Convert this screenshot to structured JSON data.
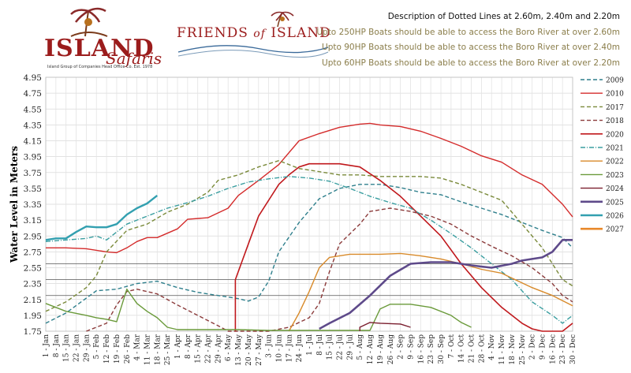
{
  "logos": {
    "island_safaris": {
      "name": "ISLAND",
      "sub": "Safaris",
      "tag": "Island Group of Companies Head Office Co. Est. 1978"
    },
    "friends_of_island": {
      "part1": "FRIENDS",
      "part2": "of",
      "part3": "ISLAND"
    }
  },
  "notes": {
    "heading": "Description of Dotted Lines at 2.60m, 2.40m and 2.20m",
    "lines": [
      "Upto 250HP Boats should be able to access the Boro River at over 2.60m",
      "Upto 90HP Boats should be able to access the Boro River at over 2.40m",
      "Upto 60HP Boats should be able to access the Boro River at over 2.20m"
    ]
  },
  "colors": {
    "note_text": "#8a7d4a",
    "heading_text": "#111111"
  },
  "chart_data": {
    "type": "line",
    "title": "",
    "xlabel": "",
    "ylabel": "Water Level in Meters",
    "ylim": [
      1.75,
      4.95
    ],
    "yticks": [
      "4.95",
      "4.75",
      "4.55",
      "4.35",
      "4.15",
      "3.95",
      "3.75",
      "3.55",
      "3.35",
      "3.15",
      "2.95",
      "2.75",
      "2.55",
      "2.35",
      "2.15",
      "1.95",
      "1.75"
    ],
    "threshold_lines": [
      2.6,
      2.4,
      2.2
    ],
    "x_unit": "day of year",
    "categories": [
      "1 - Jan",
      "8 - Jan",
      "15 - Jan",
      "22 - Jan",
      "29 - Jan",
      "5 - Feb",
      "12 - Feb",
      "19 - Feb",
      "26 - Feb",
      "4 - Mar",
      "11 - Mar",
      "18 - Mar",
      "25 - Mar",
      "1 - Apr",
      "8 - Apr",
      "15 - Apr",
      "22 - Apr",
      "29 - Apr",
      "6 - May",
      "13 - May",
      "20 - May",
      "27 - May",
      "3 - Jun",
      "10 - Jun",
      "17 - Jun",
      "24 - Jun",
      "1 - Jul",
      "8 - Jul",
      "15 - Jul",
      "22 - Jul",
      "29 - Jul",
      "5 - Aug",
      "12 - Aug",
      "19 - Aug",
      "26 - Aug",
      "2 - Sep",
      "9 - Sep",
      "16 - Sep",
      "23 - Sep",
      "30 - Sep",
      "7 - Oct",
      "14 - Oct",
      "21 - Oct",
      "28 - Oct",
      "4 - Nov",
      "11 - Nov",
      "18 - Nov",
      "25 - Nov",
      "2 - Dec",
      "9 - Dec",
      "16 - Dec",
      "23 - Dec",
      "30 - Dec"
    ],
    "legend_position": "right",
    "series": [
      {
        "name": "2009",
        "color": "#2e7f8c",
        "dash": "5,3",
        "width": 1.4,
        "points": [
          [
            1,
            1.85
          ],
          [
            15,
            1.98
          ],
          [
            36,
            2.26
          ],
          [
            50,
            2.28
          ],
          [
            64,
            2.35
          ],
          [
            78,
            2.38
          ],
          [
            92,
            2.3
          ],
          [
            106,
            2.24
          ],
          [
            120,
            2.2
          ],
          [
            134,
            2.16
          ],
          [
            141,
            2.13
          ],
          [
            148,
            2.18
          ],
          [
            155,
            2.38
          ],
          [
            162,
            2.75
          ],
          [
            176,
            3.12
          ],
          [
            190,
            3.42
          ],
          [
            204,
            3.55
          ],
          [
            218,
            3.6
          ],
          [
            232,
            3.6
          ],
          [
            246,
            3.56
          ],
          [
            260,
            3.5
          ],
          [
            274,
            3.47
          ],
          [
            288,
            3.38
          ],
          [
            302,
            3.3
          ],
          [
            316,
            3.22
          ],
          [
            330,
            3.12
          ],
          [
            344,
            3.02
          ],
          [
            358,
            2.93
          ],
          [
            365,
            2.8
          ]
        ]
      },
      {
        "name": "2010",
        "color": "#d42b2b",
        "dash": "",
        "width": 1.4,
        "points": [
          [
            1,
            2.8
          ],
          [
            15,
            2.8
          ],
          [
            29,
            2.79
          ],
          [
            43,
            2.75
          ],
          [
            50,
            2.74
          ],
          [
            57,
            2.8
          ],
          [
            64,
            2.88
          ],
          [
            71,
            2.93
          ],
          [
            78,
            2.93
          ],
          [
            92,
            3.04
          ],
          [
            99,
            3.16
          ],
          [
            113,
            3.18
          ],
          [
            127,
            3.3
          ],
          [
            134,
            3.46
          ],
          [
            148,
            3.65
          ],
          [
            162,
            3.85
          ],
          [
            176,
            4.15
          ],
          [
            190,
            4.24
          ],
          [
            204,
            4.32
          ],
          [
            218,
            4.36
          ],
          [
            225,
            4.37
          ],
          [
            232,
            4.35
          ],
          [
            246,
            4.33
          ],
          [
            260,
            4.27
          ],
          [
            274,
            4.18
          ],
          [
            288,
            4.08
          ],
          [
            302,
            3.96
          ],
          [
            316,
            3.88
          ],
          [
            330,
            3.72
          ],
          [
            344,
            3.6
          ],
          [
            358,
            3.35
          ],
          [
            365,
            3.19
          ]
        ]
      },
      {
        "name": "2017",
        "color": "#7a8a3a",
        "dash": "5,3",
        "width": 1.4,
        "points": [
          [
            1,
            2.0
          ],
          [
            15,
            2.12
          ],
          [
            29,
            2.3
          ],
          [
            36,
            2.45
          ],
          [
            43,
            2.75
          ],
          [
            57,
            3.02
          ],
          [
            71,
            3.1
          ],
          [
            85,
            3.25
          ],
          [
            99,
            3.35
          ],
          [
            113,
            3.5
          ],
          [
            120,
            3.65
          ],
          [
            134,
            3.72
          ],
          [
            148,
            3.82
          ],
          [
            162,
            3.9
          ],
          [
            176,
            3.8
          ],
          [
            190,
            3.76
          ],
          [
            204,
            3.72
          ],
          [
            218,
            3.72
          ],
          [
            232,
            3.7
          ],
          [
            246,
            3.7
          ],
          [
            260,
            3.7
          ],
          [
            274,
            3.68
          ],
          [
            288,
            3.6
          ],
          [
            302,
            3.5
          ],
          [
            316,
            3.4
          ],
          [
            330,
            3.1
          ],
          [
            344,
            2.8
          ],
          [
            358,
            2.4
          ],
          [
            365,
            2.32
          ]
        ]
      },
      {
        "name": "2018",
        "color": "#8b3a3a",
        "dash": "5,3",
        "width": 1.4,
        "points": [
          [
            29,
            1.75
          ],
          [
            43,
            1.85
          ],
          [
            50,
            2.08
          ],
          [
            57,
            2.25
          ],
          [
            64,
            2.28
          ],
          [
            78,
            2.22
          ],
          [
            92,
            2.08
          ],
          [
            106,
            1.95
          ],
          [
            120,
            1.82
          ],
          [
            127,
            1.75
          ],
          [
            155,
            1.75
          ],
          [
            169,
            1.8
          ],
          [
            183,
            1.92
          ],
          [
            190,
            2.1
          ],
          [
            197,
            2.5
          ],
          [
            204,
            2.85
          ],
          [
            218,
            3.1
          ],
          [
            225,
            3.26
          ],
          [
            239,
            3.3
          ],
          [
            253,
            3.26
          ],
          [
            267,
            3.2
          ],
          [
            281,
            3.1
          ],
          [
            295,
            2.95
          ],
          [
            309,
            2.82
          ],
          [
            323,
            2.7
          ],
          [
            337,
            2.55
          ],
          [
            351,
            2.35
          ],
          [
            358,
            2.2
          ],
          [
            365,
            2.12
          ]
        ]
      },
      {
        "name": "2020",
        "color": "#c0181c",
        "dash": "",
        "width": 1.6,
        "points": [
          [
            132,
            1.75
          ],
          [
            132,
            2.4
          ],
          [
            141,
            2.85
          ],
          [
            148,
            3.2
          ],
          [
            155,
            3.4
          ],
          [
            162,
            3.6
          ],
          [
            169,
            3.72
          ],
          [
            176,
            3.82
          ],
          [
            183,
            3.86
          ],
          [
            204,
            3.86
          ],
          [
            218,
            3.82
          ],
          [
            232,
            3.65
          ],
          [
            246,
            3.45
          ],
          [
            260,
            3.2
          ],
          [
            274,
            2.95
          ],
          [
            288,
            2.6
          ],
          [
            302,
            2.3
          ],
          [
            316,
            2.05
          ],
          [
            330,
            1.85
          ],
          [
            337,
            1.78
          ],
          [
            344,
            1.75
          ],
          [
            358,
            1.75
          ],
          [
            365,
            1.85
          ]
        ]
      },
      {
        "name": "2021",
        "color": "#3a9ea0",
        "dash": "6,2,1,2",
        "width": 1.4,
        "points": [
          [
            1,
            2.88
          ],
          [
            15,
            2.9
          ],
          [
            29,
            2.92
          ],
          [
            36,
            2.95
          ],
          [
            43,
            2.9
          ],
          [
            50,
            3.0
          ],
          [
            57,
            3.1
          ],
          [
            71,
            3.2
          ],
          [
            85,
            3.3
          ],
          [
            99,
            3.37
          ],
          [
            113,
            3.45
          ],
          [
            127,
            3.55
          ],
          [
            141,
            3.63
          ],
          [
            155,
            3.67
          ],
          [
            169,
            3.7
          ],
          [
            183,
            3.68
          ],
          [
            197,
            3.64
          ],
          [
            211,
            3.55
          ],
          [
            225,
            3.45
          ],
          [
            239,
            3.37
          ],
          [
            253,
            3.3
          ],
          [
            267,
            3.15
          ],
          [
            281,
            2.98
          ],
          [
            295,
            2.8
          ],
          [
            309,
            2.6
          ],
          [
            323,
            2.4
          ],
          [
            337,
            2.12
          ],
          [
            351,
            1.95
          ],
          [
            358,
            1.85
          ],
          [
            365,
            1.95
          ]
        ]
      },
      {
        "name": "2022",
        "color": "#d88a2a",
        "dash": "",
        "width": 1.4,
        "points": [
          [
            169,
            1.75
          ],
          [
            176,
            1.98
          ],
          [
            183,
            2.25
          ],
          [
            190,
            2.55
          ],
          [
            197,
            2.68
          ],
          [
            211,
            2.72
          ],
          [
            232,
            2.72
          ],
          [
            246,
            2.73
          ],
          [
            260,
            2.7
          ],
          [
            274,
            2.66
          ],
          [
            288,
            2.6
          ],
          [
            302,
            2.53
          ],
          [
            316,
            2.48
          ],
          [
            323,
            2.42
          ],
          [
            337,
            2.3
          ],
          [
            351,
            2.2
          ],
          [
            365,
            2.07
          ]
        ]
      },
      {
        "name": "2023",
        "color": "#6a9a3a",
        "dash": "",
        "width": 1.4,
        "points": [
          [
            1,
            2.1
          ],
          [
            15,
            2.0
          ],
          [
            29,
            1.95
          ],
          [
            36,
            1.92
          ],
          [
            43,
            1.9
          ],
          [
            50,
            1.87
          ],
          [
            57,
            2.28
          ],
          [
            64,
            2.1
          ],
          [
            71,
            2.0
          ],
          [
            78,
            1.92
          ],
          [
            85,
            1.8
          ],
          [
            92,
            1.77
          ],
          [
            134,
            1.77
          ],
          [
            155,
            1.76
          ],
          [
            225,
            1.76
          ],
          [
            232,
            2.03
          ],
          [
            239,
            2.09
          ],
          [
            253,
            2.09
          ],
          [
            267,
            2.05
          ],
          [
            281,
            1.95
          ],
          [
            288,
            1.86
          ],
          [
            295,
            1.8
          ]
        ]
      },
      {
        "name": "2024",
        "color": "#7a1e2e",
        "dash": "",
        "width": 1.4,
        "points": [
          [
            218,
            1.75
          ],
          [
            218,
            1.8
          ],
          [
            225,
            1.86
          ],
          [
            232,
            1.85
          ],
          [
            246,
            1.84
          ],
          [
            253,
            1.8
          ]
        ]
      },
      {
        "name": "2025",
        "color": "#5e4a8a",
        "dash": "",
        "width": 2.6,
        "points": [
          [
            190,
            1.78
          ],
          [
            197,
            1.85
          ],
          [
            211,
            1.98
          ],
          [
            225,
            2.2
          ],
          [
            239,
            2.45
          ],
          [
            253,
            2.6
          ],
          [
            267,
            2.62
          ],
          [
            281,
            2.62
          ],
          [
            295,
            2.58
          ],
          [
            309,
            2.55
          ],
          [
            323,
            2.6
          ],
          [
            330,
            2.64
          ],
          [
            337,
            2.66
          ],
          [
            344,
            2.68
          ],
          [
            351,
            2.75
          ],
          [
            358,
            2.9
          ],
          [
            365,
            2.9
          ]
        ]
      },
      {
        "name": "2026",
        "color": "#33a0b0",
        "dash": "",
        "width": 2.4,
        "points": [
          [
            1,
            2.9
          ],
          [
            8,
            2.92
          ],
          [
            15,
            2.92
          ],
          [
            22,
            3.0
          ],
          [
            29,
            3.07
          ],
          [
            36,
            3.06
          ],
          [
            43,
            3.06
          ],
          [
            50,
            3.1
          ],
          [
            57,
            3.22
          ],
          [
            64,
            3.3
          ],
          [
            71,
            3.36
          ],
          [
            78,
            3.46
          ]
        ]
      },
      {
        "name": "2027",
        "color": "#e8882a",
        "dash": "",
        "width": 2.6,
        "points": []
      }
    ]
  }
}
